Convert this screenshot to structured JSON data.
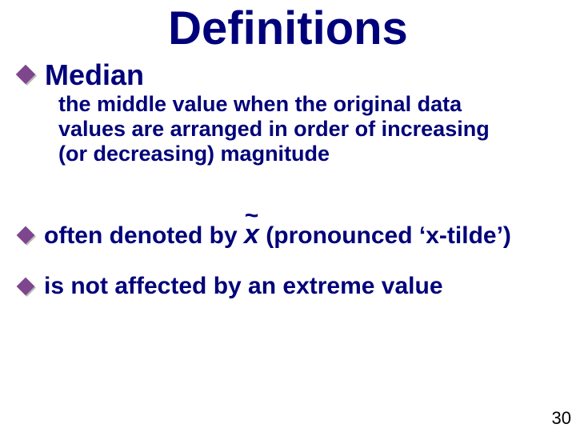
{
  "colors": {
    "title": "#00007a",
    "term": "#00007a",
    "defText": "#00007a",
    "bodyText": "#00007a",
    "bulletFill": "#7e468c",
    "bulletShadow": "#b9b9b9",
    "pageNumber": "#000000",
    "background": "#ffffff"
  },
  "fonts": {
    "titleSize": 58,
    "termSize": 36,
    "defSize": 27,
    "bodySize": 30,
    "xtildeSize": 34,
    "tildeSize": 30,
    "tildeTop": -21,
    "pageNumberSize": 22
  },
  "bullet": {
    "large": {
      "size": 28,
      "shadowOffset": 2
    },
    "small": {
      "size": 26,
      "shadowOffset": 2
    }
  },
  "title": "Definitions",
  "term": "Median",
  "definition": "the middle value when the original data values are arranged in order of increasing (or decreasing) magnitude",
  "line2_pre": "often denoted by ",
  "xtilde_letter": "x",
  "xtilde_tilde": "~",
  "line2_post": "  (pronounced ‘x-tilde’)",
  "line3": "is not affected by an extreme value",
  "pageNumber": "30"
}
